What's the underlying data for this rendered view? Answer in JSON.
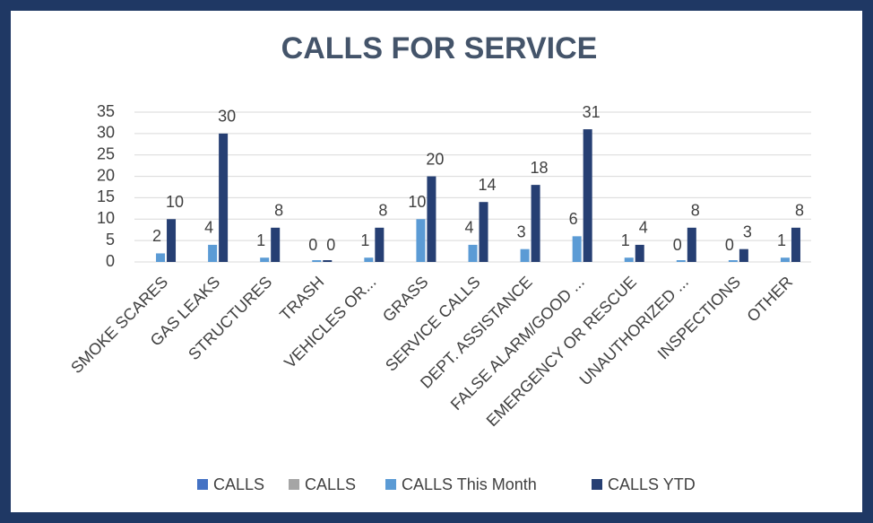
{
  "chart_data": {
    "type": "bar",
    "title": "CALLS FOR SERVICE",
    "categories": [
      "SMOKE SCARES",
      "GAS LEAKS",
      "STRUCTURES",
      "TRASH",
      "VEHICLES OR...",
      "GRASS",
      "SERVICE CALLS",
      "DEPT. ASSISTANCE",
      "FALSE ALARM/GOOD ...",
      "EMERGENCY OR RESCUE",
      "UNAUTHORIZED ...",
      "INSPECTIONS",
      "OTHER"
    ],
    "series": [
      {
        "name": "CALLS",
        "color": "#4472c4",
        "values": [
          null,
          null,
          null,
          null,
          null,
          null,
          null,
          null,
          null,
          null,
          null,
          null,
          null
        ]
      },
      {
        "name": "CALLS",
        "color": "#a5a5a5",
        "values": [
          null,
          null,
          null,
          null,
          null,
          null,
          null,
          null,
          null,
          null,
          null,
          null,
          null
        ]
      },
      {
        "name": "CALLS This Month",
        "color": "#5b9bd5",
        "values": [
          2,
          4,
          1,
          0,
          1,
          10,
          4,
          3,
          6,
          1,
          0,
          0,
          1
        ]
      },
      {
        "name": "CALLS YTD",
        "color": "#263f73",
        "values": [
          10,
          30,
          8,
          0,
          8,
          20,
          14,
          18,
          31,
          4,
          8,
          3,
          8
        ]
      }
    ],
    "ylim": [
      0,
      35
    ],
    "yticks": [
      0,
      5,
      10,
      15,
      20,
      25,
      30,
      35
    ],
    "grid": true,
    "legend": "bottom"
  }
}
